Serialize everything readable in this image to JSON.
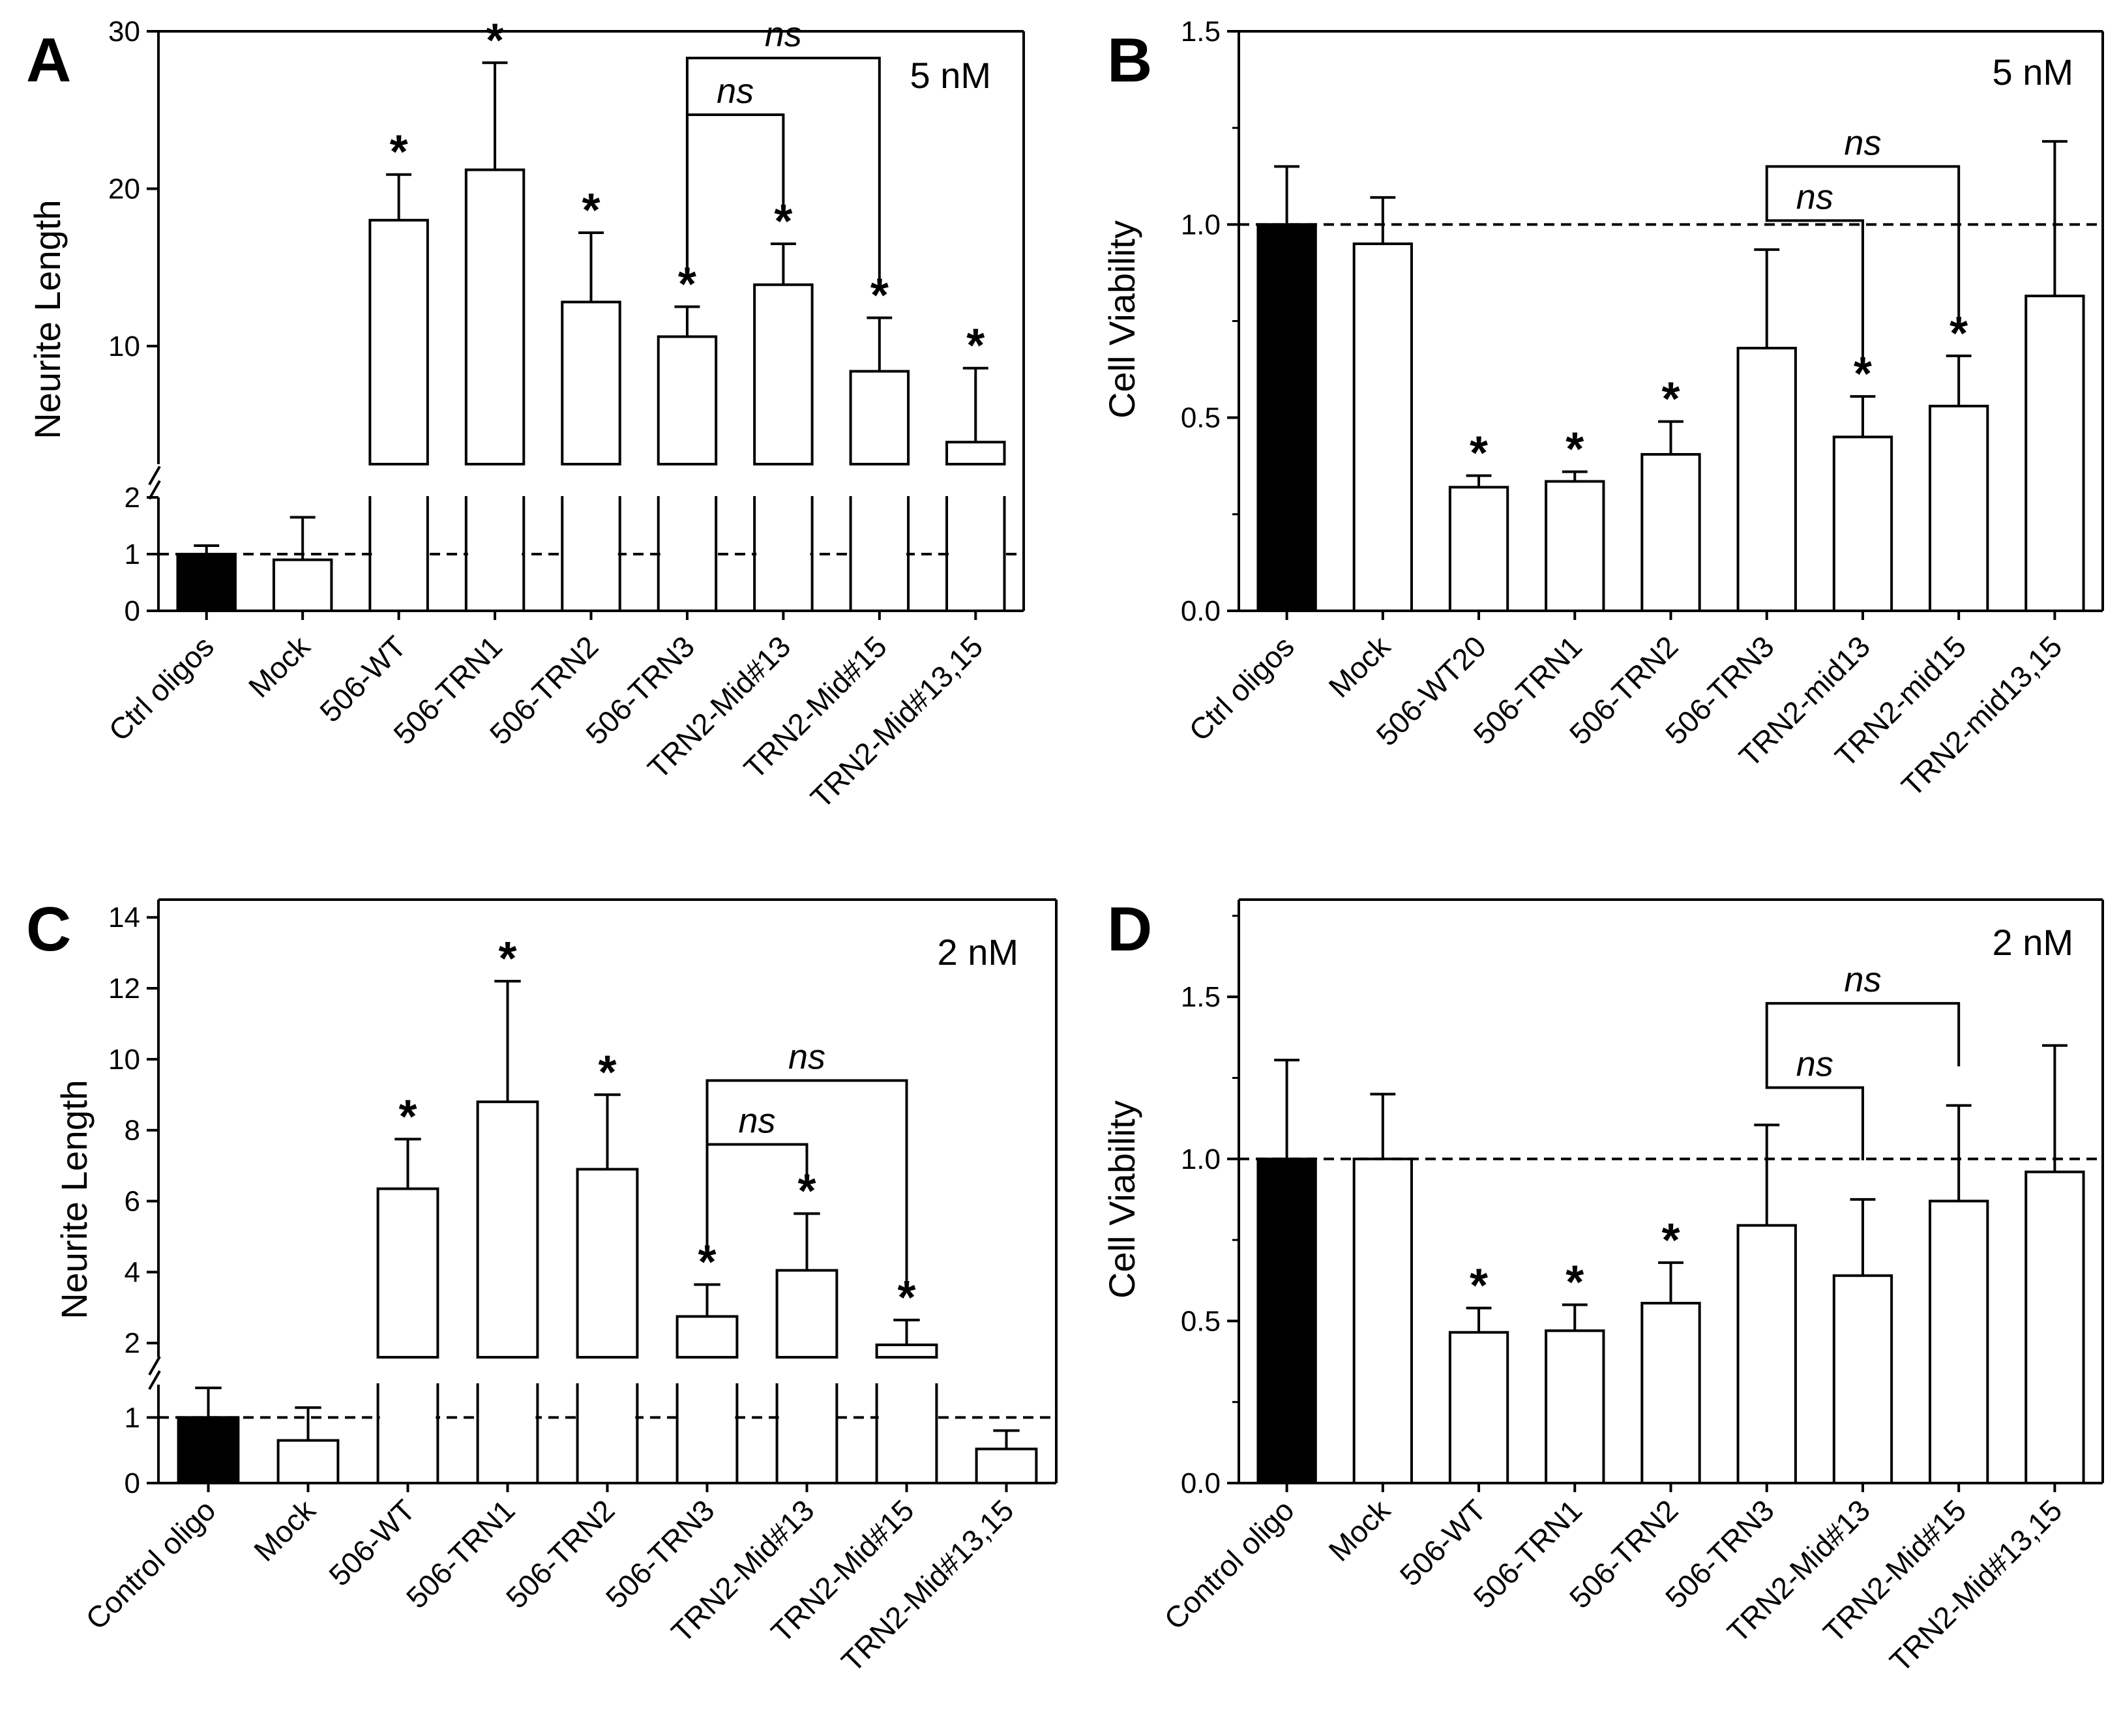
{
  "colors": {
    "control_fill": "#000000",
    "bar_fill": "#ffffff",
    "stroke": "#000000"
  },
  "chart_data": [
    {
      "panel": "A",
      "type": "bar",
      "concentration": "5 nM",
      "ylabel": "Neurite Length",
      "axis_break": true,
      "lower_ylim": [
        0,
        2
      ],
      "upper_ylim": [
        2.5,
        30
      ],
      "lower_yticks": [
        "0",
        "1",
        "2"
      ],
      "lower_ytick_values": [
        0,
        1,
        2
      ],
      "upper_yticks": [
        "10",
        "20",
        "30"
      ],
      "upper_ytick_values": [
        10,
        20,
        30
      ],
      "reference_line": 1,
      "categories": [
        "Ctrl oligos",
        "Mock",
        "506-WT",
        "506-TRN1",
        "506-TRN2",
        "506-TRN3",
        "TRN2-Mid#13",
        "TRN2-Mid#15",
        "TRN2-Mid#13,15"
      ],
      "values": [
        1.0,
        0.9,
        18.0,
        21.2,
        12.8,
        10.6,
        13.9,
        8.4,
        3.9
      ],
      "errors": [
        0.15,
        0.75,
        2.9,
        6.8,
        4.4,
        1.9,
        2.6,
        3.4,
        4.7
      ],
      "significant": [
        false,
        false,
        true,
        true,
        true,
        true,
        true,
        true,
        true
      ],
      "star_label": "*",
      "comparisons": [
        {
          "from": 5,
          "to": 6,
          "label": "ns",
          "level": 24.7
        },
        {
          "from": 5,
          "to": 7,
          "label": "ns",
          "level": 28.3
        }
      ]
    },
    {
      "panel": "B",
      "type": "bar",
      "concentration": "5 nM",
      "ylabel": "Cell Viability",
      "axis_break": false,
      "ylim": [
        0,
        1.5
      ],
      "yticks": [
        "0.0",
        "0.5",
        "1.0",
        "1.5"
      ],
      "ytick_values": [
        0,
        0.5,
        1.0,
        1.5
      ],
      "reference_line": 1,
      "categories": [
        "Ctrl oligos",
        "Mock",
        "506-WT20",
        "506-TRN1",
        "506-TRN2",
        "506-TRN3",
        "TRN2-mid13",
        "TRN2-mid15",
        "TRN2-mid13,15"
      ],
      "values": [
        1.0,
        0.95,
        0.32,
        0.335,
        0.405,
        0.68,
        0.45,
        0.53,
        0.815
      ],
      "errors": [
        0.15,
        0.12,
        0.03,
        0.025,
        0.085,
        0.255,
        0.105,
        0.13,
        0.4
      ],
      "significant": [
        false,
        false,
        true,
        true,
        true,
        false,
        true,
        true,
        false
      ],
      "star_label": "*",
      "comparisons": [
        {
          "from": 5,
          "to": 6,
          "label": "ns",
          "level": 1.01
        },
        {
          "from": 5,
          "to": 7,
          "label": "ns",
          "level": 1.15
        }
      ]
    },
    {
      "panel": "C",
      "type": "bar",
      "concentration": "2 nM",
      "ylabel": "Neurite Length",
      "axis_break": true,
      "lower_ylim": [
        0,
        1.5
      ],
      "upper_ylim": [
        1.6,
        14.5
      ],
      "lower_yticks": [
        "0",
        "1"
      ],
      "lower_ytick_values": [
        0,
        1
      ],
      "upper_yticks": [
        "2",
        "4",
        "6",
        "8",
        "10",
        "12",
        "14"
      ],
      "upper_ytick_values": [
        2,
        4,
        6,
        8,
        10,
        12,
        14
      ],
      "reference_line": 1,
      "categories": [
        "Control oligo",
        "Mock",
        "506-WT",
        "506-TRN1",
        "506-TRN2",
        "506-TRN3",
        "TRN2-Mid#13",
        "TRN2-Mid#15",
        "TRN2-Mid#13,15"
      ],
      "values": [
        1.0,
        0.65,
        6.35,
        8.8,
        6.9,
        2.75,
        4.05,
        1.95,
        0.52
      ],
      "errors": [
        0.45,
        0.5,
        1.4,
        3.4,
        2.1,
        0.9,
        1.6,
        0.7,
        0.28
      ],
      "significant": [
        false,
        false,
        true,
        true,
        true,
        true,
        true,
        true,
        false
      ],
      "star_label": "*",
      "comparisons": [
        {
          "from": 5,
          "to": 6,
          "label": "ns",
          "level": 7.6
        },
        {
          "from": 5,
          "to": 7,
          "label": "ns",
          "level": 9.4
        }
      ]
    },
    {
      "panel": "D",
      "type": "bar",
      "concentration": "2 nM",
      "ylabel": "Cell Viability",
      "axis_break": false,
      "ylim": [
        0,
        1.8
      ],
      "yticks": [
        "0.0",
        "0.5",
        "1.0",
        "1.5"
      ],
      "ytick_values": [
        0,
        0.5,
        1.0,
        1.5
      ],
      "reference_line": 1,
      "categories": [
        "Control oligo",
        "Mock",
        "506-WT",
        "506-TRN1",
        "506-TRN2",
        "506-TRN3",
        "TRN2-Mid#13",
        "TRN2-Mid#15",
        "TRN2-Mid#13,15"
      ],
      "values": [
        1.0,
        1.0,
        0.465,
        0.47,
        0.555,
        0.795,
        0.64,
        0.87,
        0.96
      ],
      "errors": [
        0.305,
        0.2,
        0.075,
        0.08,
        0.125,
        0.31,
        0.235,
        0.295,
        0.39
      ],
      "significant": [
        false,
        false,
        true,
        true,
        true,
        false,
        false,
        false,
        false
      ],
      "star_label": "*",
      "comparisons": [
        {
          "from": 5,
          "to": 6,
          "label": "ns",
          "level": 1.22
        },
        {
          "from": 5,
          "to": 7,
          "label": "ns",
          "level": 1.48
        }
      ]
    }
  ]
}
